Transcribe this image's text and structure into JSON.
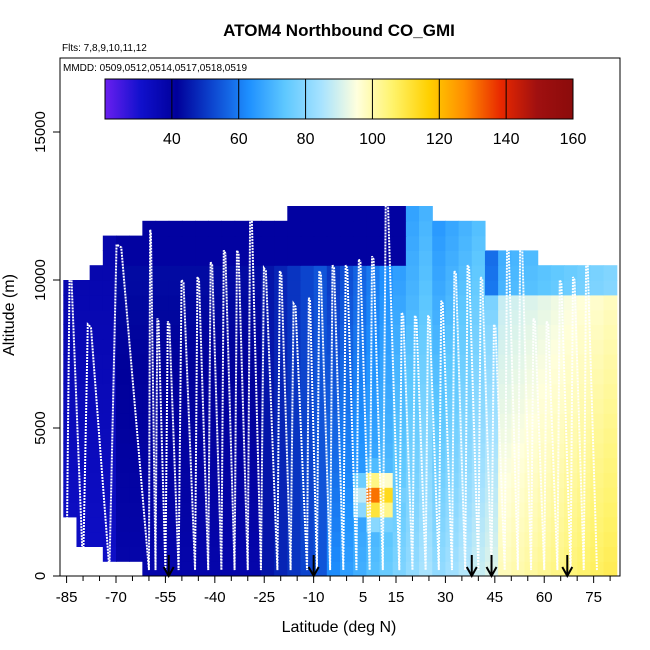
{
  "chart_data": {
    "type": "heatmap",
    "title": "ATOM4 Northbound CO_GMI",
    "subtitle_flights": "Flts: 7,8,9,10,11,12",
    "subtitle_dates": "MMDD: 0509,0512,0514,0517,0518,0519",
    "xlabel": "Latitude (deg N)",
    "ylabel": "Altitude (m)",
    "xlim": [
      -87,
      83
    ],
    "ylim": [
      0,
      17500
    ],
    "x_ticks": [
      -85,
      -70,
      -55,
      -40,
      -25,
      -10,
      5,
      15,
      30,
      45,
      60,
      75
    ],
    "x_tick_labels": [
      "-85",
      "-70",
      "-55",
      "-40",
      "-25",
      "-10",
      "5",
      "15",
      "30",
      "45",
      "60",
      "75"
    ],
    "y_ticks": [
      0,
      5000,
      10000,
      15000
    ],
    "y_tick_labels": [
      "0",
      "5000",
      "10000",
      "15000"
    ],
    "colorbar": {
      "range": [
        20,
        160
      ],
      "ticks": [
        40,
        60,
        80,
        100,
        120,
        140,
        160
      ],
      "tick_labels": [
        "40",
        "60",
        "80",
        "100",
        "120",
        "140",
        "160"
      ],
      "colors": [
        "#6a1ff0",
        "#1010cc",
        "#00009a",
        "#0d47d0",
        "#1e90ff",
        "#5ec8ff",
        "#a6e2ff",
        "#ffffdd",
        "#fff36a",
        "#ffd000",
        "#ff8c00",
        "#e82800",
        "#a01010",
        "#8b0b0b"
      ]
    },
    "altitude_bins_m": [
      0,
      500,
      1000,
      1500,
      2000,
      2500,
      3000,
      3500,
      4000,
      4500,
      5000,
      5500,
      6000,
      6500,
      7000,
      7500,
      8000,
      8500,
      9000,
      9500,
      10000,
      10500,
      11000,
      11500,
      12000
    ],
    "latitude_bins_deg": [
      -86,
      -82,
      -78,
      -74,
      -70,
      -66,
      -62,
      -58,
      -54,
      -50,
      -46,
      -42,
      -38,
      -34,
      -30,
      -26,
      -22,
      -18,
      -14,
      -10,
      -6,
      -2,
      2,
      6,
      10,
      14,
      18,
      22,
      26,
      30,
      34,
      38,
      42,
      46,
      50,
      54,
      58,
      62,
      66,
      70,
      74,
      78
    ],
    "co_values_ppb": [
      [
        null,
        null,
        null,
        null,
        null,
        null,
        null,
        null,
        null,
        null,
        null,
        null,
        null,
        null,
        null,
        null,
        null,
        null,
        null,
        null,
        null,
        null,
        null,
        null,
        null,
        null,
        null,
        null,
        null,
        null,
        null,
        null,
        null,
        null,
        null,
        null,
        null,
        null,
        null,
        null,
        null,
        null
      ],
      [
        null,
        null,
        null,
        null,
        null,
        null,
        null,
        null,
        null,
        null,
        null,
        null,
        null,
        null,
        null,
        null,
        null,
        null,
        null,
        null,
        null,
        null,
        null,
        null,
        null,
        null,
        null,
        null,
        null,
        null,
        null,
        null,
        null,
        null,
        null,
        null,
        null,
        null,
        null,
        null,
        null,
        null
      ],
      [
        null,
        null,
        null,
        null,
        null,
        null,
        null,
        null,
        null,
        null,
        null,
        null,
        null,
        null,
        null,
        null,
        null,
        null,
        null,
        null,
        null,
        null,
        null,
        null,
        null,
        null,
        null,
        null,
        null,
        null,
        null,
        null,
        null,
        null,
        null,
        null,
        null,
        null,
        null,
        null,
        null,
        null
      ],
      [
        null,
        null,
        null,
        null,
        null,
        null,
        null,
        null,
        null,
        null,
        null,
        null,
        null,
        null,
        null,
        null,
        null,
        null,
        null,
        null,
        null,
        null,
        null,
        null,
        null,
        null,
        null,
        null,
        null,
        null,
        null,
        null,
        null,
        null,
        null,
        null,
        null,
        null,
        null,
        null,
        null,
        null
      ],
      [
        null,
        null,
        null,
        null,
        null,
        null,
        null,
        null,
        null,
        null,
        null,
        null,
        null,
        null,
        null,
        null,
        null,
        null,
        null,
        null,
        null,
        null,
        null,
        null,
        null,
        null,
        null,
        null,
        null,
        null,
        null,
        null,
        null,
        null,
        null,
        null,
        null,
        null,
        null,
        null,
        null,
        null
      ],
      [
        null,
        null,
        null,
        null,
        null,
        null,
        null,
        null,
        null,
        null,
        null,
        null,
        null,
        null,
        null,
        null,
        null,
        null,
        null,
        null,
        null,
        null,
        null,
        null,
        null,
        null,
        null,
        null,
        null,
        null,
        null,
        null,
        null,
        null,
        null,
        null,
        null,
        null,
        null,
        null,
        null,
        null
      ],
      [
        null,
        null,
        null,
        null,
        null,
        null,
        null,
        null,
        null,
        null,
        null,
        null,
        null,
        null,
        null,
        null,
        null,
        null,
        null,
        null,
        null,
        null,
        null,
        null,
        null,
        null,
        null,
        null,
        null,
        null,
        null,
        null,
        null,
        null,
        null,
        null,
        null,
        null,
        null,
        null,
        null,
        null
      ],
      [
        null,
        null,
        null,
        null,
        null,
        null,
        null,
        null,
        null,
        null,
        null,
        null,
        null,
        null,
        null,
        null,
        null,
        null,
        null,
        null,
        null,
        null,
        null,
        null,
        null,
        null,
        null,
        null,
        null,
        null,
        null,
        null,
        null,
        null,
        null,
        null,
        null,
        null,
        null,
        null,
        null,
        null
      ],
      [
        null,
        null,
        null,
        null,
        null,
        null,
        null,
        null,
        null,
        null,
        null,
        null,
        null,
        null,
        null,
        null,
        null,
        null,
        null,
        null,
        null,
        null,
        null,
        null,
        null,
        null,
        null,
        null,
        null,
        null,
        null,
        null,
        null,
        null,
        null,
        null,
        null,
        null,
        null,
        null,
        null,
        null
      ],
      [
        null,
        null,
        null,
        null,
        null,
        null,
        null,
        null,
        null,
        null,
        null,
        null,
        null,
        null,
        null,
        null,
        null,
        null,
        null,
        null,
        null,
        null,
        null,
        null,
        null,
        null,
        null,
        null,
        null,
        null,
        null,
        null,
        null,
        null,
        null,
        null,
        null,
        null,
        null,
        null,
        null,
        null
      ],
      [
        null,
        null,
        null,
        null,
        null,
        null,
        null,
        null,
        null,
        null,
        null,
        null,
        null,
        null,
        null,
        null,
        null,
        null,
        null,
        null,
        null,
        null,
        null,
        null,
        null,
        null,
        null,
        null,
        null,
        null,
        null,
        null,
        null,
        null,
        null,
        null,
        null,
        null,
        null,
        null,
        null,
        null
      ],
      [
        null,
        null,
        null,
        null,
        null,
        null,
        null,
        null,
        null,
        null,
        null,
        null,
        null,
        null,
        null,
        null,
        null,
        null,
        null,
        null,
        null,
        null,
        null,
        null,
        null,
        null,
        null,
        null,
        null,
        null,
        null,
        null,
        null,
        null,
        null,
        null,
        null,
        null,
        null,
        null,
        null,
        null
      ],
      [
        null,
        null,
        null,
        null,
        null,
        null,
        null,
        null,
        null,
        null,
        null,
        null,
        null,
        null,
        null,
        null,
        null,
        null,
        null,
        null,
        null,
        null,
        null,
        null,
        null,
        null,
        null,
        null,
        null,
        null,
        null,
        null,
        null,
        null,
        null,
        null,
        null,
        null,
        null,
        null,
        null,
        null
      ],
      [
        null,
        null,
        null,
        null,
        null,
        null,
        null,
        null,
        null,
        null,
        null,
        null,
        null,
        null,
        null,
        null,
        null,
        null,
        null,
        null,
        null,
        null,
        null,
        null,
        null,
        null,
        null,
        null,
        null,
        null,
        null,
        null,
        null,
        null,
        null,
        null,
        null,
        null,
        null,
        null,
        null,
        null
      ],
      [
        null,
        null,
        null,
        null,
        null,
        null,
        null,
        null,
        null,
        null,
        null,
        null,
        null,
        null,
        null,
        null,
        null,
        null,
        null,
        null,
        null,
        null,
        null,
        null,
        null,
        null,
        null,
        null,
        null,
        null,
        null,
        null,
        null,
        null,
        null,
        null,
        null,
        null,
        null,
        null,
        null,
        null
      ],
      [
        null,
        null,
        null,
        null,
        null,
        null,
        null,
        null,
        null,
        null,
        null,
        null,
        null,
        null,
        null,
        null,
        null,
        null,
        null,
        null,
        null,
        null,
        null,
        null,
        null,
        null,
        null,
        null,
        null,
        null,
        null,
        null,
        null,
        null,
        null,
        null,
        null,
        null,
        null,
        null,
        null,
        null
      ],
      [
        null,
        null,
        null,
        null,
        null,
        null,
        null,
        null,
        null,
        null,
        null,
        null,
        null,
        null,
        null,
        null,
        null,
        null,
        null,
        null,
        null,
        null,
        null,
        null,
        null,
        null,
        null,
        null,
        null,
        null,
        null,
        null,
        null,
        null,
        null,
        null,
        null,
        null,
        null,
        null,
        null,
        null
      ],
      [
        null,
        null,
        null,
        null,
        null,
        null,
        null,
        null,
        null,
        null,
        null,
        null,
        null,
        null,
        null,
        null,
        null,
        null,
        null,
        null,
        null,
        null,
        null,
        null,
        null,
        null,
        null,
        null,
        null,
        null,
        null,
        null,
        null,
        null,
        null,
        null,
        null,
        null,
        null,
        null,
        null,
        null
      ],
      [
        null,
        null,
        null,
        null,
        null,
        null,
        null,
        null,
        null,
        null,
        null,
        null,
        null,
        null,
        null,
        null,
        null,
        null,
        null,
        null,
        null,
        null,
        null,
        null,
        null,
        null,
        null,
        null,
        null,
        null,
        null,
        null,
        null,
        null,
        null,
        null,
        null,
        null,
        null,
        null,
        null,
        null
      ],
      [
        null,
        null,
        null,
        null,
        null,
        null,
        null,
        null,
        null,
        null,
        null,
        null,
        null,
        null,
        null,
        null,
        null,
        null,
        null,
        null,
        null,
        null,
        null,
        null,
        null,
        null,
        null,
        null,
        null,
        null,
        null,
        null,
        null,
        null,
        null,
        null,
        null,
        null,
        null,
        null,
        null,
        null
      ],
      [
        null,
        null,
        null,
        null,
        null,
        null,
        null,
        null,
        null,
        null,
        null,
        null,
        null,
        null,
        null,
        null,
        null,
        null,
        null,
        null,
        null,
        null,
        null,
        null,
        null,
        null,
        null,
        null,
        null,
        null,
        null,
        null,
        null,
        null,
        null,
        null,
        null,
        null,
        null,
        null,
        null,
        null
      ],
      [
        null,
        null,
        null,
        null,
        null,
        null,
        null,
        null,
        null,
        null,
        null,
        null,
        null,
        null,
        null,
        null,
        null,
        null,
        null,
        null,
        null,
        null,
        null,
        null,
        null,
        null,
        null,
        null,
        null,
        null,
        null,
        null,
        null,
        null,
        null,
        null,
        null,
        null,
        null,
        null,
        null,
        null
      ],
      [
        null,
        null,
        null,
        null,
        null,
        null,
        null,
        null,
        null,
        null,
        null,
        null,
        null,
        null,
        null,
        null,
        null,
        null,
        null,
        null,
        null,
        null,
        null,
        null,
        null,
        null,
        null,
        null,
        null,
        null,
        null,
        null,
        null,
        null,
        null,
        null,
        null,
        null,
        null,
        null,
        null,
        null
      ],
      [
        null,
        null,
        null,
        null,
        null,
        null,
        null,
        null,
        null,
        null,
        null,
        null,
        null,
        null,
        null,
        null,
        null,
        null,
        null,
        null,
        null,
        null,
        null,
        null,
        null,
        null,
        null,
        null,
        null,
        null,
        null,
        null,
        null,
        null,
        null,
        null,
        null,
        null,
        null,
        null,
        null,
        null
      ],
      [
        null,
        null,
        null,
        null,
        null,
        null,
        null,
        null,
        null,
        null,
        null,
        null,
        null,
        null,
        null,
        null,
        null,
        null,
        null,
        null,
        null,
        null,
        null,
        null,
        null,
        null,
        null,
        null,
        null,
        null,
        null,
        null,
        null,
        null,
        null,
        null,
        null,
        null,
        null,
        null,
        null,
        null
      ]
    ],
    "flight_track_peaks_m": [
      10100,
      8500,
      11200,
      11700,
      8700,
      8600,
      10000,
      10100,
      10600,
      11000,
      11000,
      12300,
      10400,
      10300,
      9200,
      9400,
      10300,
      10500,
      10500,
      10700,
      10800,
      12900,
      8900,
      8800,
      8800,
      9300,
      10300,
      10500
    ],
    "track_turn_latitudes_deg": [
      -85,
      -80,
      -72,
      -60,
      -58,
      -55,
      -51,
      -46,
      -42,
      -38,
      -34,
      -30,
      -26,
      -21,
      -17,
      -12,
      -9,
      -5,
      -1,
      3,
      7,
      11,
      16,
      20,
      24,
      28,
      32,
      36,
      40,
      44,
      48,
      52,
      56,
      60,
      64,
      68,
      72,
      76
    ],
    "marker_arrow_latitudes_deg": [
      -54,
      -10,
      38,
      44,
      67
    ]
  }
}
